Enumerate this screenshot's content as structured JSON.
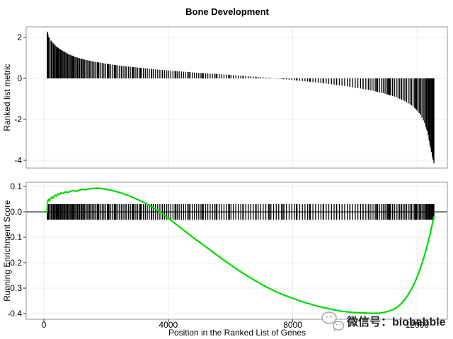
{
  "title": "Bone Development",
  "watermark": {
    "text": "微信号：biobabble",
    "icon": "wechat-icon",
    "color": "#9b9b9b"
  },
  "chart_data": {
    "type": "gsea",
    "title": "Bone Development",
    "xlabel": "Position in the Ranked List of Genes",
    "x_tick_labels": [
      "0",
      "4000",
      "8000",
      "12000"
    ],
    "x_tick_values": [
      0,
      4000,
      8000,
      12000
    ],
    "xlim": [
      -570,
      12970
    ],
    "grid": "on",
    "colors": {
      "es_line": "#00d900",
      "bars": "#000000",
      "grid": "#ededed",
      "panel_border": "#a6a6a6",
      "zero_line": "#000000",
      "tick_mark": "#333333",
      "watermark": "#9b9b9b"
    },
    "panels": [
      {
        "name": "ranked-list-metric",
        "ylabel": "Ranked list metric",
        "y_tick_labels": [
          "2",
          "0",
          "-2",
          "-4"
        ],
        "y_tick_values": [
          2,
          0,
          -2,
          -4
        ],
        "ylim": [
          -4.4,
          2.5
        ]
      },
      {
        "name": "running-enrichment-score",
        "ylabel": "Running Enrichment Score",
        "y_tick_labels": [
          "0.1",
          "0.0",
          "-0.1",
          "-0.2",
          "-0.3",
          "-0.4"
        ],
        "y_tick_values": [
          0.1,
          0.0,
          -0.1,
          -0.2,
          -0.3,
          -0.4
        ],
        "ylim": [
          -0.42,
          0.12
        ]
      }
    ],
    "es_stats": {
      "es_min": -0.399,
      "es_max": 0.093,
      "n_genes": 12540
    },
    "hit_positions": [
      108,
      132,
      158,
      175,
      228,
      252,
      266,
      304,
      333,
      366,
      398,
      420,
      447,
      473,
      510,
      538,
      562,
      598,
      634,
      665,
      702,
      738,
      766,
      800,
      838,
      872,
      906,
      940,
      968,
      1004,
      1042,
      1080,
      1118,
      1150,
      1192,
      1230,
      1266,
      1302,
      1348,
      1390,
      1432,
      1478,
      1520,
      1568,
      1612,
      1660,
      1714,
      1768,
      1822,
      1876,
      1930,
      1986,
      2040,
      2094,
      2150,
      2208,
      2262,
      2320,
      2378,
      2430,
      2490,
      2548,
      2604,
      2660,
      2722,
      2780,
      2840,
      2900,
      2958,
      3016,
      3080,
      3140,
      3200,
      3262,
      3325,
      3390,
      3455,
      3520,
      3590,
      3660,
      3730,
      3805,
      3880,
      3950,
      4015,
      4080,
      4150,
      4215,
      4285,
      4350,
      4420,
      4490,
      4555,
      4625,
      4700,
      4770,
      4840,
      4910,
      4980,
      5050,
      5125,
      5200,
      5270,
      5345,
      5420,
      5490,
      5565,
      5640,
      5715,
      5790,
      5865,
      5940,
      6015,
      6090,
      6170,
      6250,
      6330,
      6410,
      6490,
      6570,
      6650,
      6730,
      6810,
      6890,
      6970,
      7050,
      7135,
      7220,
      7300,
      7385,
      7470,
      7550,
      7635,
      7720,
      7800,
      7885,
      7970,
      8055,
      8140,
      8225,
      8310,
      8395,
      8480,
      8565,
      8650,
      8735,
      8820,
      8905,
      8990,
      9075,
      9160,
      9245,
      9330,
      9415,
      9500,
      9585,
      9670,
      9755,
      9840,
      9925,
      10010,
      10095,
      10180,
      10265,
      10350,
      10430,
      10490,
      10550,
      10610,
      10670,
      10730,
      10790,
      10850,
      10910,
      10970,
      11030,
      11090,
      11150,
      11210,
      11270,
      11330,
      11385,
      11440,
      11495,
      11550,
      11605,
      11660,
      11715,
      11770,
      11820,
      11870,
      11920,
      11970,
      12020,
      12065,
      12110,
      12155,
      12200,
      12240,
      12280,
      12320,
      12355,
      12390,
      12425,
      12455,
      12485,
      12515,
      12540,
      120,
      310,
      455,
      648,
      915,
      1210,
      1475,
      1740,
      2065,
      2290,
      2615,
      2870,
      3105,
      3470,
      3815,
      4235,
      4665,
      5095,
      5535,
      5965,
      6395,
      6825,
      7255,
      7685,
      8115,
      8545,
      8975,
      9405,
      9835,
      10260,
      10690,
      11120,
      11550,
      11980,
      12410,
      11060,
      11500,
      11940,
      12380,
      12100,
      12300,
      12500
    ],
    "ranked_metric_profile": [
      [
        0,
        2.4
      ],
      [
        110,
        2.28
      ],
      [
        160,
        2.0
      ],
      [
        250,
        1.8
      ],
      [
        400,
        1.55
      ],
      [
        600,
        1.35
      ],
      [
        800,
        1.18
      ],
      [
        1000,
        1.05
      ],
      [
        1300,
        0.92
      ],
      [
        1600,
        0.82
      ],
      [
        2000,
        0.72
      ],
      [
        2400,
        0.63
      ],
      [
        2900,
        0.55
      ],
      [
        3400,
        0.47
      ],
      [
        3900,
        0.4
      ],
      [
        4400,
        0.34
      ],
      [
        4900,
        0.28
      ],
      [
        5400,
        0.23
      ],
      [
        5900,
        0.18
      ],
      [
        6400,
        0.13
      ],
      [
        6900,
        0.07
      ],
      [
        7200,
        0.03
      ],
      [
        7500,
        -0.01
      ],
      [
        7900,
        -0.07
      ],
      [
        8400,
        -0.14
      ],
      [
        8900,
        -0.22
      ],
      [
        9300,
        -0.3
      ],
      [
        9700,
        -0.38
      ],
      [
        10100,
        -0.47
      ],
      [
        10500,
        -0.58
      ],
      [
        10900,
        -0.72
      ],
      [
        11300,
        -0.9
      ],
      [
        11600,
        -1.1
      ],
      [
        11900,
        -1.4
      ],
      [
        12100,
        -1.75
      ],
      [
        12250,
        -2.2
      ],
      [
        12360,
        -2.8
      ],
      [
        12440,
        -3.5
      ],
      [
        12500,
        -3.9
      ],
      [
        12540,
        -4.15
      ]
    ],
    "es_curve": [
      [
        0,
        0
      ],
      [
        105,
        0
      ],
      [
        112,
        0.028
      ],
      [
        128,
        0.044
      ],
      [
        158,
        0.05
      ],
      [
        182,
        0.043
      ],
      [
        225,
        0.053
      ],
      [
        258,
        0.059
      ],
      [
        290,
        0.054
      ],
      [
        330,
        0.061
      ],
      [
        368,
        0.066
      ],
      [
        408,
        0.062
      ],
      [
        450,
        0.07
      ],
      [
        498,
        0.068
      ],
      [
        548,
        0.075
      ],
      [
        615,
        0.072
      ],
      [
        698,
        0.079
      ],
      [
        775,
        0.076
      ],
      [
        850,
        0.081
      ],
      [
        948,
        0.084
      ],
      [
        1045,
        0.081
      ],
      [
        1148,
        0.086
      ],
      [
        1248,
        0.089
      ],
      [
        1348,
        0.087
      ],
      [
        1452,
        0.091
      ],
      [
        1600,
        0.092
      ],
      [
        1752,
        0.093
      ],
      [
        1900,
        0.091
      ],
      [
        2050,
        0.088
      ],
      [
        2200,
        0.084
      ],
      [
        2350,
        0.079
      ],
      [
        2500,
        0.074
      ],
      [
        2650,
        0.067
      ],
      [
        2800,
        0.06
      ],
      [
        2952,
        0.052
      ],
      [
        3100,
        0.044
      ],
      [
        3252,
        0.035
      ],
      [
        3400,
        0.025
      ],
      [
        3552,
        0.014
      ],
      [
        3700,
        0.003
      ],
      [
        3850,
        -0.01
      ],
      [
        4000,
        -0.025
      ],
      [
        4200,
        -0.044
      ],
      [
        4400,
        -0.063
      ],
      [
        4600,
        -0.082
      ],
      [
        4800,
        -0.101
      ],
      [
        5000,
        -0.119
      ],
      [
        5200,
        -0.137
      ],
      [
        5400,
        -0.155
      ],
      [
        5600,
        -0.173
      ],
      [
        5800,
        -0.191
      ],
      [
        6000,
        -0.208
      ],
      [
        6200,
        -0.225
      ],
      [
        6400,
        -0.241
      ],
      [
        6600,
        -0.256
      ],
      [
        6800,
        -0.271
      ],
      [
        7000,
        -0.285
      ],
      [
        7200,
        -0.298
      ],
      [
        7400,
        -0.31
      ],
      [
        7600,
        -0.321
      ],
      [
        7800,
        -0.331
      ],
      [
        8000,
        -0.34
      ],
      [
        8200,
        -0.349
      ],
      [
        8400,
        -0.357
      ],
      [
        8600,
        -0.364
      ],
      [
        8800,
        -0.371
      ],
      [
        9000,
        -0.377
      ],
      [
        9200,
        -0.382
      ],
      [
        9400,
        -0.387
      ],
      [
        9600,
        -0.391
      ],
      [
        9800,
        -0.394
      ],
      [
        10000,
        -0.396
      ],
      [
        10200,
        -0.397
      ],
      [
        10400,
        -0.398
      ],
      [
        10600,
        -0.399
      ],
      [
        10800,
        -0.398
      ],
      [
        10950,
        -0.395
      ],
      [
        11100,
        -0.39
      ],
      [
        11250,
        -0.383
      ],
      [
        11400,
        -0.371
      ],
      [
        11520,
        -0.357
      ],
      [
        11640,
        -0.339
      ],
      [
        11760,
        -0.317
      ],
      [
        11870,
        -0.292
      ],
      [
        11970,
        -0.265
      ],
      [
        12060,
        -0.237
      ],
      [
        12145,
        -0.207
      ],
      [
        12225,
        -0.176
      ],
      [
        12300,
        -0.144
      ],
      [
        12365,
        -0.113
      ],
      [
        12420,
        -0.085
      ],
      [
        12465,
        -0.06
      ],
      [
        12505,
        -0.038
      ],
      [
        12540,
        -0.02
      ]
    ]
  }
}
